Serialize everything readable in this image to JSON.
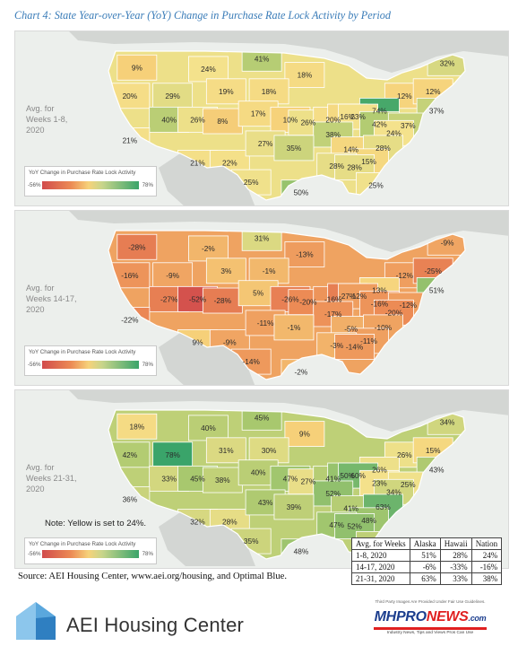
{
  "title": "Chart 4: State Year-over-Year (YoY) Change in Purchase Rate Lock Activity by Period",
  "colors": {
    "low": "#d14b4c",
    "mid": "#f6d27a",
    "high": "#3aa46a",
    "ocean": "#ecefec",
    "title": "#3a7cb8"
  },
  "panels": [
    {
      "period_lines": [
        "Avg. for",
        "Weeks 1-8,",
        "2020"
      ],
      "legend": {
        "title": "YoY Change in Purchase Rate Lock Activity",
        "min": "-56%",
        "max": "78%"
      },
      "labels": [
        "9%",
        "24%",
        "41%",
        "18%",
        "32%",
        "20%",
        "29%",
        "19%",
        "18%",
        "12%",
        "12%",
        "74%",
        "37%",
        "40%",
        "26%",
        "8%",
        "17%",
        "10%",
        "26%",
        "20%",
        "16%",
        "23%",
        "42%",
        "37%",
        "21%",
        "38%",
        "24%",
        "21%",
        "22%",
        "27%",
        "35%",
        "14%",
        "28%",
        "15%",
        "25%",
        "50%",
        "28%",
        "28%",
        "25%"
      ]
    },
    {
      "period_lines": [
        "Avg. for",
        "Weeks 14-17,",
        "2020"
      ],
      "legend": {
        "title": "YoY Change in Purchase Rate Lock Activity",
        "min": "-56%",
        "max": "78%"
      },
      "labels": [
        "-28%",
        "-2%",
        "31%",
        "-13%",
        "-9%",
        "-16%",
        "-9%",
        "3%",
        "-1%",
        "-12%",
        "-25%",
        "13%",
        "51%",
        "-27%",
        "-52%",
        "-28%",
        "5%",
        "-26%",
        "-20%",
        "-16%",
        "-27%",
        "-12%",
        "-16%",
        "-12%",
        "-22%",
        "-17%",
        "-20%",
        "9%",
        "-9%",
        "-11%",
        "-1%",
        "-5%",
        "-10%",
        "-11%",
        "-14%",
        "-2%",
        "-3%",
        "-14%"
      ]
    },
    {
      "period_lines": [
        "Avg. for",
        "Weeks 21-31,",
        "2020"
      ],
      "legend": {
        "title": "YoY Change in Purchase Rate Lock Activity",
        "min": "-56%",
        "max": "78%"
      },
      "labels": [
        "18%",
        "40%",
        "45%",
        "9%",
        "34%",
        "42%",
        "78%",
        "31%",
        "30%",
        "26%",
        "15%",
        "26%",
        "43%",
        "33%",
        "45%",
        "38%",
        "40%",
        "47%",
        "27%",
        "41%",
        "50%",
        "60%",
        "23%",
        "25%",
        "36%",
        "52%",
        "34%",
        "32%",
        "28%",
        "43%",
        "39%",
        "41%",
        "63%",
        "48%",
        "35%",
        "48%",
        "47%",
        "52%",
        "39%",
        "50%"
      ]
    }
  ],
  "note": "Note: Yellow is set to 24%.",
  "source": "Source: AEI Housing Center, www.aei.org/housing, and Optimal Blue.",
  "table": {
    "headers": [
      "Avg. for Weeks",
      "Alaska",
      "Hawaii",
      "Nation"
    ],
    "rows": [
      [
        "1-8, 2020",
        "51%",
        "28%",
        "24%"
      ],
      [
        "14-17, 2020",
        "-6%",
        "-33%",
        "-16%"
      ],
      [
        "21-31, 2020",
        "63%",
        "33%",
        "38%"
      ]
    ]
  },
  "footer": {
    "org_name": "AEI Housing Center",
    "mh_top": "Third Party Images Are Provided Under Fair Use Guidelines.",
    "mh_brand_a": "MHPRO",
    "mh_brand_b": "NEWS",
    "mh_brand_c": ".com",
    "mh_tagline": "Industry News, Tips and Views Pros Can Use"
  }
}
